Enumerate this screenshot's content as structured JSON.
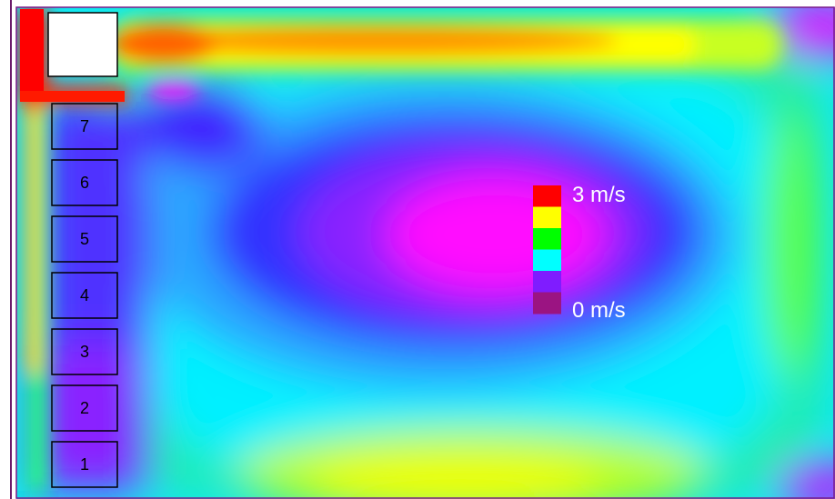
{
  "legend": {
    "max_label": "3 m/s",
    "min_label": "0 m/s",
    "swatches": [
      "#ff0000",
      "#ffff00",
      "#00ff00",
      "#00ffff",
      "#7f1cff",
      "#9b1482"
    ]
  },
  "boxes": [
    {
      "label": "7"
    },
    {
      "label": "6"
    },
    {
      "label": "5"
    },
    {
      "label": "4"
    },
    {
      "label": "3"
    },
    {
      "label": "2"
    },
    {
      "label": "1"
    }
  ],
  "colors": {
    "red": "#ff0000",
    "yellow": "#ffff00",
    "green": "#00ff00",
    "cyan": "#00ffff",
    "blue": "#2020ff",
    "magenta": "#ff00ff",
    "violet": "#8a10ff"
  }
}
